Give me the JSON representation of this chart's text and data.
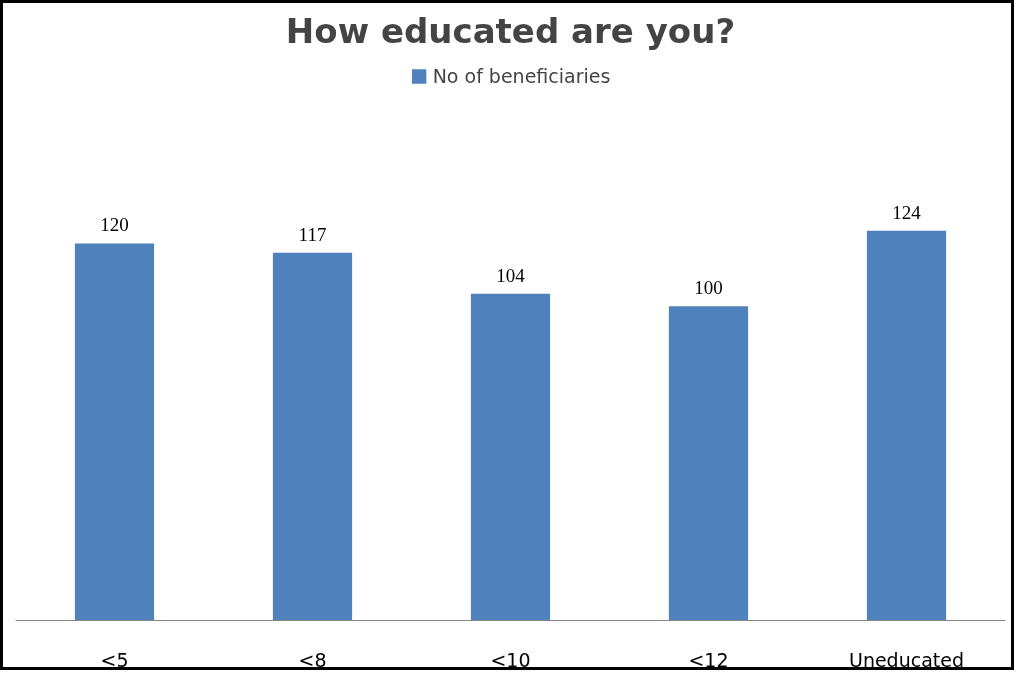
{
  "chart_data": {
    "type": "bar",
    "title": "How educated are you?",
    "categories": [
      "<5",
      "<8",
      "<10",
      "<12",
      "Uneducated"
    ],
    "series": [
      {
        "name": "No of beneficiaries",
        "color": "#4f81bd",
        "values": [
          120,
          117,
          104,
          100,
          124
        ]
      }
    ],
    "data_labels": true,
    "legend": "top",
    "grid": false
  }
}
